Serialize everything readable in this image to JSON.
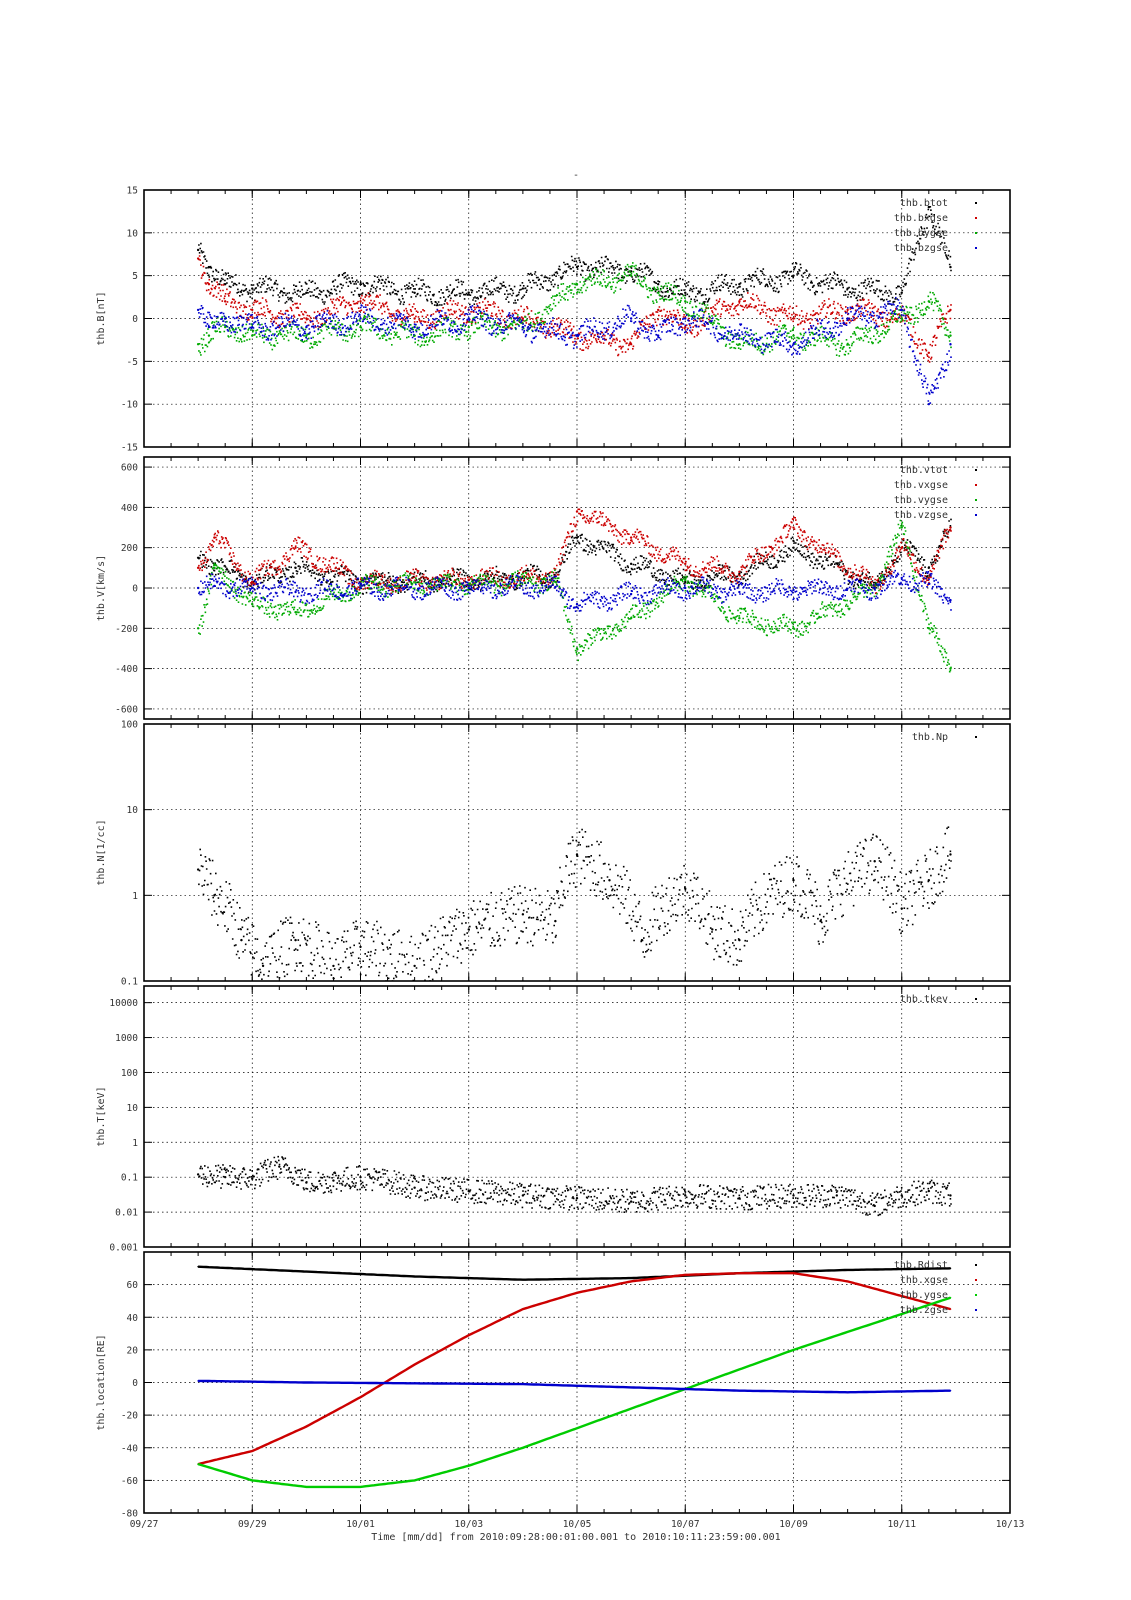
{
  "page_title": "-",
  "footer": {
    "xlabel": "Time [mm/dd]  from 2010:09:28:00:01:00.001  to  2010:10:11:23:59:00.001"
  },
  "chart_data": [
    {
      "type": "scatter",
      "ylabel": "thb.B[nT]",
      "yscale": "linear",
      "ylim": [
        -15,
        15
      ],
      "yticks": [
        -15,
        -10,
        -5,
        0,
        5,
        10,
        15
      ],
      "xlim": [
        0,
        16
      ],
      "grid": true,
      "legend_position": "top-right",
      "series": [
        {
          "name": "thb.btot",
          "color": "#000000",
          "x": [
            1,
            1.2,
            1.5,
            2,
            3,
            4,
            5,
            6,
            7,
            8,
            9,
            9.5,
            10,
            11,
            12,
            13,
            14,
            14.5,
            14.9
          ],
          "y": [
            8,
            6,
            4,
            3.5,
            3,
            4,
            3,
            3,
            3.5,
            6,
            5.5,
            4,
            3,
            4,
            5,
            3.5,
            3,
            13,
            6
          ]
        },
        {
          "name": "thb.bxgse",
          "color": "#cc0000",
          "x": [
            1,
            1.2,
            1.5,
            2,
            3,
            4,
            5,
            6,
            7,
            8,
            9,
            9.5,
            10,
            11,
            12,
            13,
            14,
            14.5,
            14.9
          ],
          "y": [
            7,
            4,
            2,
            1,
            0,
            2,
            0,
            1,
            0,
            -2,
            -3,
            1,
            -1,
            2,
            0,
            1,
            0,
            -4,
            1
          ]
        },
        {
          "name": "thb.bygse",
          "color": "#00aa00",
          "x": [
            1,
            1.2,
            1.5,
            2,
            3,
            4,
            5,
            6,
            7,
            8,
            9,
            9.5,
            10,
            11,
            12,
            13,
            14,
            14.5,
            14.9
          ],
          "y": [
            -3,
            -2,
            -1,
            -2,
            -2,
            -1,
            -2,
            -1,
            -1,
            4,
            5,
            3,
            2,
            -3,
            -2,
            -3,
            0,
            2,
            -2
          ]
        },
        {
          "name": "thb.bzgse",
          "color": "#0000cc",
          "x": [
            1,
            1.2,
            1.5,
            2,
            3,
            4,
            5,
            6,
            7,
            8,
            9,
            9.5,
            10,
            11,
            12,
            13,
            14,
            14.5,
            14.9
          ],
          "y": [
            1,
            -1,
            0,
            -1,
            -1,
            0,
            -1,
            0,
            -1,
            -2,
            0,
            -2,
            0,
            -2,
            -3,
            0,
            1,
            -10,
            -3
          ]
        }
      ]
    },
    {
      "type": "scatter",
      "ylabel": "thb.V[km/s]",
      "yscale": "linear",
      "ylim": [
        -650,
        650
      ],
      "yticks": [
        -600,
        -400,
        -200,
        0,
        200,
        400,
        600
      ],
      "xlim": [
        0,
        16
      ],
      "grid": true,
      "legend_position": "top-right",
      "series": [
        {
          "name": "thb.vtot",
          "color": "#000000",
          "x": [
            1,
            1.3,
            2,
            2.8,
            4,
            6,
            7.6,
            8,
            9,
            10,
            11,
            12,
            13.5,
            14,
            14.5,
            14.9
          ],
          "y": [
            150,
            120,
            30,
            100,
            30,
            40,
            60,
            250,
            120,
            30,
            70,
            200,
            10,
            200,
            100,
            300
          ]
        },
        {
          "name": "thb.vxgse",
          "color": "#cc0000",
          "x": [
            1,
            1.3,
            2,
            2.8,
            4,
            6,
            7.6,
            8,
            9,
            10,
            11,
            12,
            13.5,
            14,
            14.5,
            14.9
          ],
          "y": [
            100,
            250,
            30,
            200,
            30,
            40,
            60,
            380,
            250,
            120,
            80,
            300,
            10,
            200,
            50,
            300
          ]
        },
        {
          "name": "thb.vygse",
          "color": "#00aa00",
          "x": [
            1,
            1.3,
            2,
            2.8,
            4,
            6,
            7.6,
            8,
            9,
            10,
            11,
            12,
            13.5,
            14,
            14.5,
            14.9
          ],
          "y": [
            -200,
            100,
            -80,
            -120,
            10,
            20,
            30,
            -300,
            -150,
            40,
            -150,
            -200,
            0,
            300,
            -200,
            -400
          ]
        },
        {
          "name": "thb.vzgse",
          "color": "#0000cc",
          "x": [
            1,
            1.3,
            2,
            2.8,
            4,
            6,
            7.6,
            8,
            9,
            10,
            11,
            12,
            13.5,
            14,
            14.5,
            14.9
          ],
          "y": [
            0,
            10,
            0,
            -20,
            0,
            0,
            5,
            -80,
            -30,
            0,
            -20,
            -10,
            0,
            50,
            20,
            -60
          ]
        }
      ]
    },
    {
      "type": "scatter",
      "ylabel": "thb.N[1/cc]",
      "yscale": "log",
      "ylim": [
        0.1,
        100
      ],
      "yticks": [
        0.1,
        1,
        10,
        100
      ],
      "xlim": [
        0,
        16
      ],
      "grid": true,
      "legend_position": "top-right",
      "series": [
        {
          "name": "thb.Np",
          "color": "#000000",
          "x": [
            1,
            1.3,
            1.8,
            2.2,
            2.8,
            3.5,
            4,
            5,
            6,
            7,
            7.6,
            8.0,
            8.6,
            9.2,
            10,
            10.5,
            11,
            12,
            12.5,
            13.5,
            14,
            14.5,
            14.9
          ],
          "y": [
            2,
            1,
            0.3,
            0.15,
            0.3,
            0.15,
            0.25,
            0.15,
            0.4,
            0.6,
            0.5,
            3,
            1.5,
            0.3,
            1.2,
            0.4,
            0.3,
            1.5,
            0.5,
            2.5,
            0.7,
            1.5,
            3
          ]
        }
      ]
    },
    {
      "type": "scatter",
      "ylabel": "thb.T[keV]",
      "yscale": "log",
      "ylim": [
        0.001,
        30000
      ],
      "yticks": [
        0.001,
        0.01,
        0.1,
        1,
        10,
        100,
        1000,
        10000
      ],
      "xlim": [
        0,
        16
      ],
      "grid": true,
      "legend_position": "top-right",
      "series": [
        {
          "name": "thb.tkev",
          "color": "#000000",
          "x": [
            1,
            1.5,
            2,
            2.5,
            3,
            3.5,
            4,
            5,
            6,
            7,
            8,
            9,
            10,
            11,
            12,
            12.8,
            13.5,
            14,
            14.5,
            14.9
          ],
          "y": [
            0.12,
            0.1,
            0.09,
            0.2,
            0.07,
            0.08,
            0.1,
            0.05,
            0.04,
            0.03,
            0.025,
            0.02,
            0.03,
            0.025,
            0.03,
            0.03,
            0.015,
            0.03,
            0.04,
            0.03
          ]
        }
      ]
    },
    {
      "type": "line",
      "ylabel": "thb.location[RE]",
      "yscale": "linear",
      "ylim": [
        -80,
        80
      ],
      "yticks": [
        -80,
        -60,
        -40,
        -20,
        0,
        20,
        40,
        60
      ],
      "xlim": [
        0,
        16
      ],
      "xticks": [
        0,
        2,
        4,
        6,
        8,
        10,
        12,
        14,
        16
      ],
      "xticklabels": [
        "09/27",
        "09/29",
        "10/01",
        "10/03",
        "10/05",
        "10/07",
        "10/09",
        "10/11",
        "10/13"
      ],
      "grid": true,
      "legend_position": "top-right",
      "series": [
        {
          "name": "thb.Rdist",
          "color": "#000000",
          "x": [
            1,
            3,
            5,
            7,
            9,
            11,
            13,
            14.9
          ],
          "y": [
            71,
            68,
            65,
            63,
            64,
            67,
            69,
            70
          ]
        },
        {
          "name": "thb.xgse",
          "color": "#cc0000",
          "x": [
            1,
            2,
            3,
            4,
            5,
            6,
            7,
            8,
            9,
            10,
            11,
            12,
            13,
            14,
            14.9
          ],
          "y": [
            -50,
            -42,
            -27,
            -9,
            11,
            29,
            45,
            55,
            62,
            66,
            67,
            67,
            62,
            53,
            45
          ]
        },
        {
          "name": "thb.ygse",
          "color": "#00cc00",
          "x": [
            1,
            2,
            3,
            4,
            5,
            6,
            7,
            8,
            9,
            10,
            11,
            12,
            13,
            14,
            14.9
          ],
          "y": [
            -50,
            -60,
            -64,
            -64,
            -60,
            -51,
            -40,
            -28,
            -16,
            -4,
            8,
            20,
            31,
            42,
            52
          ]
        },
        {
          "name": "thb.zgse",
          "color": "#0000cc",
          "x": [
            1,
            3,
            5,
            7,
            9,
            11,
            13,
            14.9
          ],
          "y": [
            1,
            0,
            -0.5,
            -1,
            -3,
            -5,
            -6,
            -5
          ]
        }
      ]
    }
  ]
}
